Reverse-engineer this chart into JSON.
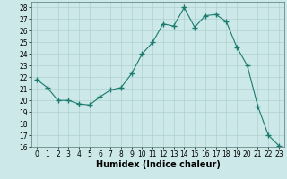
{
  "x": [
    0,
    1,
    2,
    3,
    4,
    5,
    6,
    7,
    8,
    9,
    10,
    11,
    12,
    13,
    14,
    15,
    16,
    17,
    18,
    19,
    20,
    21,
    22,
    23
  ],
  "y": [
    21.8,
    21.1,
    20.0,
    20.0,
    19.7,
    19.6,
    20.3,
    20.9,
    21.1,
    22.3,
    24.0,
    25.0,
    26.6,
    26.4,
    28.0,
    26.3,
    27.3,
    27.4,
    26.8,
    24.6,
    23.0,
    19.5,
    17.0,
    16.1
  ],
  "line_color": "#1a7a6e",
  "marker": "+",
  "marker_size": 4.0,
  "bg_color": "#cce8e8",
  "grid_color": "#b0d0d0",
  "xlabel": "Humidex (Indice chaleur)",
  "xlim": [
    -0.5,
    23.5
  ],
  "ylim": [
    16,
    28.5
  ],
  "yticks": [
    16,
    17,
    18,
    19,
    20,
    21,
    22,
    23,
    24,
    25,
    26,
    27,
    28
  ],
  "xticks": [
    0,
    1,
    2,
    3,
    4,
    5,
    6,
    7,
    8,
    9,
    10,
    11,
    12,
    13,
    14,
    15,
    16,
    17,
    18,
    19,
    20,
    21,
    22,
    23
  ],
  "tick_label_fontsize": 5.5,
  "xlabel_fontsize": 7.0,
  "xlabel_fontweight": "bold",
  "lw": 0.8,
  "marker_lw": 1.0
}
